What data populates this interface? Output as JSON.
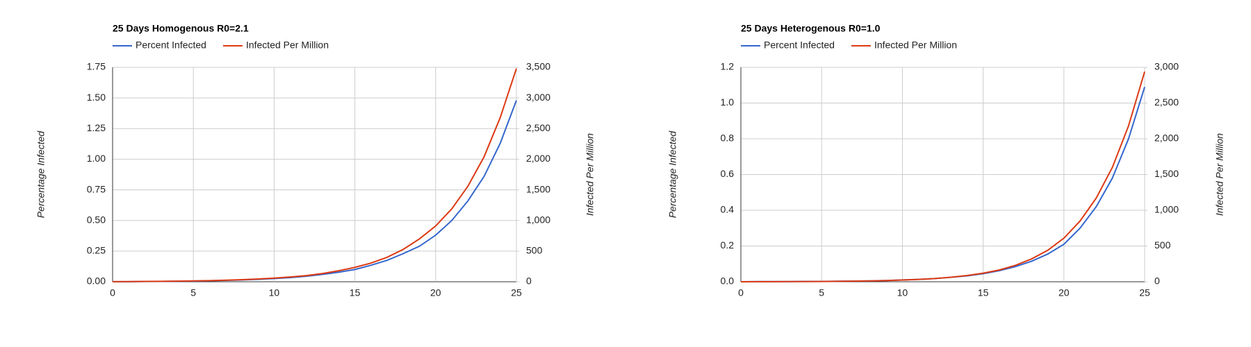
{
  "chart_data": [
    {
      "type": "line",
      "title": "25 Days Homogenous R0=2.1",
      "legend": "top",
      "grid": true,
      "y_label": "Percentage Infected",
      "y2_label": "Infected Per Million",
      "x": [
        0,
        1,
        2,
        3,
        4,
        5,
        6,
        7,
        8,
        9,
        10,
        11,
        12,
        13,
        14,
        15,
        16,
        17,
        18,
        19,
        20,
        21,
        22,
        23,
        24,
        25
      ],
      "xlim": [
        0,
        25
      ],
      "xticks": [
        0,
        5,
        10,
        15,
        20,
        25
      ],
      "ylim": [
        0,
        1.75
      ],
      "yticks": [
        {
          "value": 0,
          "label": "0.00"
        },
        0.25,
        {
          "value": 0.5,
          "label": "0.50"
        },
        0.75,
        {
          "value": 1,
          "label": "1.00"
        },
        1.25,
        {
          "value": 1.5,
          "label": "1.50"
        },
        1.75
      ],
      "y2lim": [
        0,
        3500
      ],
      "y2ticks": [
        0,
        500,
        {
          "value": 1000,
          "label": "1,000"
        },
        {
          "value": 1500,
          "label": "1,500"
        },
        {
          "value": 2000,
          "label": "2,000"
        },
        {
          "value": 2500,
          "label": "2,500"
        },
        {
          "value": 3000,
          "label": "3,000"
        },
        {
          "value": 3500,
          "label": "3,500"
        }
      ],
      "series": [
        {
          "name": "Percent Infected",
          "color": "#3366cc",
          "values": [
            0.001,
            0.001,
            0.002,
            0.003,
            0.004,
            0.006,
            0.008,
            0.011,
            0.015,
            0.02,
            0.026,
            0.034,
            0.045,
            0.06,
            0.078,
            0.1,
            0.135,
            0.175,
            0.23,
            0.29,
            0.38,
            0.5,
            0.66,
            0.86,
            1.13,
            1.48
          ]
        },
        {
          "name": "Infected Per Million",
          "color": "#dc3912",
          "axis": "y2",
          "values": [
            2,
            3,
            5,
            7,
            10,
            14,
            19,
            26,
            34,
            45,
            60,
            78,
            100,
            135,
            180,
            235,
            305,
            400,
            530,
            700,
            910,
            1190,
            1560,
            2040,
            2680,
            3480
          ]
        }
      ]
    },
    {
      "type": "line",
      "title": "25 Days Heterogenous R0=1.0",
      "legend": "top",
      "grid": true,
      "y_label": "Percentage Infected",
      "y2_label": "Infected Per Million",
      "x": [
        0,
        1,
        2,
        3,
        4,
        5,
        6,
        7,
        8,
        9,
        10,
        11,
        12,
        13,
        14,
        15,
        16,
        17,
        18,
        19,
        20,
        21,
        22,
        23,
        24,
        25
      ],
      "xlim": [
        0,
        25
      ],
      "xticks": [
        0,
        5,
        10,
        15,
        20,
        25
      ],
      "ylim": [
        0,
        1.2
      ],
      "yticks": [
        {
          "value": 0,
          "label": "0.0"
        },
        0.2,
        0.4,
        0.6,
        0.8,
        {
          "value": 1,
          "label": "1.0"
        },
        1.2
      ],
      "y2lim": [
        0,
        3000
      ],
      "y2ticks": [
        0,
        500,
        {
          "value": 1000,
          "label": "1,000"
        },
        {
          "value": 1500,
          "label": "1,500"
        },
        {
          "value": 2000,
          "label": "2,000"
        },
        {
          "value": 2500,
          "label": "2,500"
        },
        {
          "value": 3000,
          "label": "3,000"
        }
      ],
      "series": [
        {
          "name": "Percent Infected",
          "color": "#3366cc",
          "values": [
            0,
            0.001,
            0.001,
            0.001,
            0.002,
            0.002,
            0.003,
            0.004,
            0.005,
            0.007,
            0.01,
            0.013,
            0.018,
            0.025,
            0.033,
            0.045,
            0.062,
            0.085,
            0.115,
            0.155,
            0.21,
            0.3,
            0.42,
            0.58,
            0.8,
            1.09
          ]
        },
        {
          "name": "Infected Per Million",
          "color": "#dc3912",
          "axis": "y2",
          "values": [
            0,
            1,
            1,
            2,
            3,
            4,
            6,
            9,
            12,
            17,
            24,
            33,
            45,
            63,
            87,
            120,
            165,
            230,
            320,
            440,
            610,
            850,
            1170,
            1600,
            2180,
            2940
          ]
        }
      ]
    }
  ]
}
